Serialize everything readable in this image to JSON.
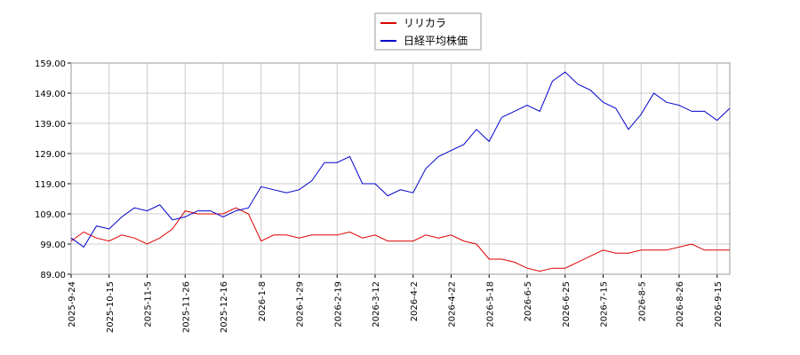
{
  "chart_data": {
    "type": "line",
    "categories": [
      "2025-9-24",
      null,
      null,
      "2025-10-15",
      null,
      null,
      "2025-11-5",
      null,
      null,
      "2025-11-26",
      null,
      null,
      "2025-12-16",
      null,
      null,
      "2026-1-8",
      null,
      null,
      "2026-1-29",
      null,
      null,
      "2026-2-19",
      null,
      null,
      "2026-3-12",
      null,
      null,
      "2026-4-2",
      null,
      null,
      "2026-4-22",
      null,
      null,
      "2026-5-18",
      null,
      null,
      "2026-6-5",
      null,
      null,
      "2026-6-25",
      null,
      null,
      "2026-7-15",
      null,
      null,
      "2026-8-5",
      null,
      null,
      "2026-8-26",
      null,
      null,
      "2026-9-15",
      null
    ],
    "series": [
      {
        "name": "リリカラ",
        "color": "#dd0000",
        "values": [
          100,
          103,
          101,
          100,
          102,
          101,
          99,
          101,
          104,
          110,
          109,
          109,
          109,
          111,
          109,
          100,
          102,
          102,
          101,
          102,
          102,
          102,
          103,
          101,
          102,
          100,
          100,
          100,
          102,
          101,
          102,
          100,
          99,
          94,
          94,
          93,
          91,
          90,
          91,
          91,
          93,
          95,
          97,
          96,
          96,
          97,
          97,
          97,
          98,
          99,
          97,
          97,
          97
        ]
      },
      {
        "name": "日経平均株価",
        "color": "#0000cc",
        "values": [
          101,
          98,
          105,
          104,
          108,
          111,
          110,
          112,
          107,
          108,
          110,
          110,
          108,
          110,
          111,
          118,
          117,
          116,
          117,
          120,
          126,
          126,
          128,
          119,
          119,
          115,
          117,
          116,
          124,
          128,
          130,
          132,
          137,
          133,
          141,
          143,
          145,
          143,
          153,
          156,
          152,
          150,
          146,
          144,
          137,
          142,
          149,
          146,
          145,
          143,
          143,
          140,
          144
        ]
      }
    ],
    "ylim": [
      89,
      159
    ],
    "yticks": [
      {
        "value": 89,
        "label": "89.00"
      },
      {
        "value": 99,
        "label": "99.00"
      },
      {
        "value": 109,
        "label": "109.00"
      },
      {
        "value": 119,
        "label": "119.00"
      },
      {
        "value": 129,
        "label": "129.00"
      },
      {
        "value": 139,
        "label": "139.00"
      },
      {
        "value": 149,
        "label": "149.00"
      },
      {
        "value": 159,
        "label": "159.00"
      }
    ],
    "grid": true
  }
}
